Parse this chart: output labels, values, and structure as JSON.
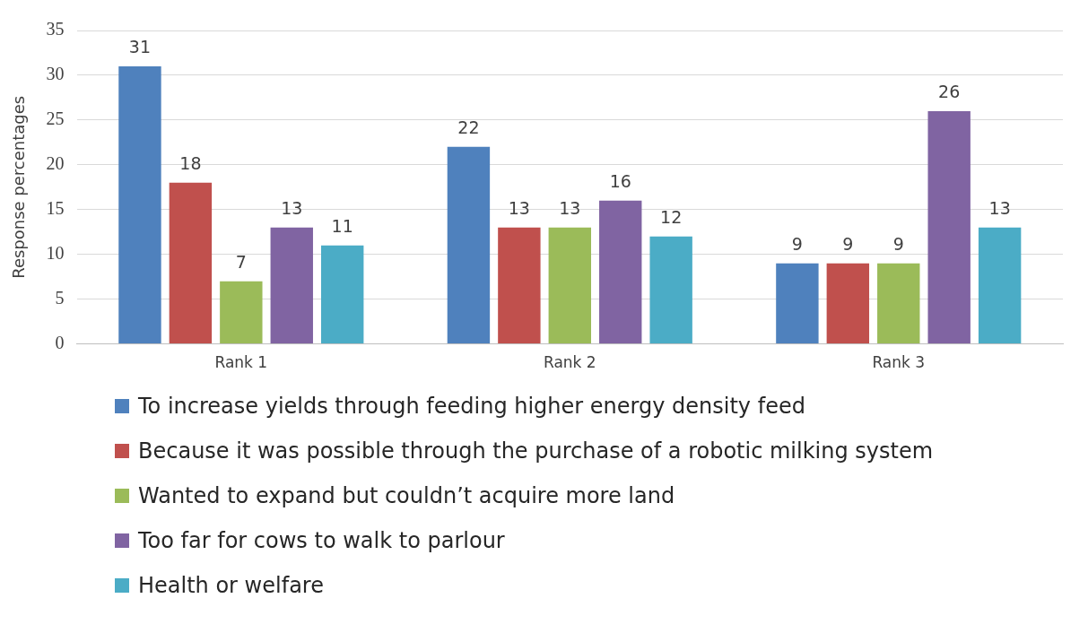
{
  "chart_data": {
    "type": "bar",
    "ylabel": "Response percentages",
    "categories": [
      "Rank 1",
      "Rank 2",
      "Rank 3"
    ],
    "series": [
      {
        "name": "To increase yields through feeding higher energy density feed",
        "color": "#4f81bd",
        "values": [
          31,
          22,
          9
        ]
      },
      {
        "name": "Because it was possible through the purchase of a robotic milking system",
        "color": "#c0504d",
        "values": [
          18,
          13,
          9
        ]
      },
      {
        "name": "Wanted to expand but couldn’t acquire more land",
        "color": "#9bbb59",
        "values": [
          7,
          13,
          9
        ]
      },
      {
        "name": "Too far for cows to walk to parlour",
        "color": "#8064a2",
        "values": [
          13,
          16,
          26
        ]
      },
      {
        "name": "Health or welfare",
        "color": "#4bacc6",
        "values": [
          11,
          12,
          13
        ]
      }
    ],
    "ylim": [
      0,
      35
    ],
    "yticks": [
      0,
      5,
      10,
      15,
      20,
      25,
      30,
      35
    ],
    "grid": "y",
    "legend": "bottom",
    "data_labels": true
  }
}
